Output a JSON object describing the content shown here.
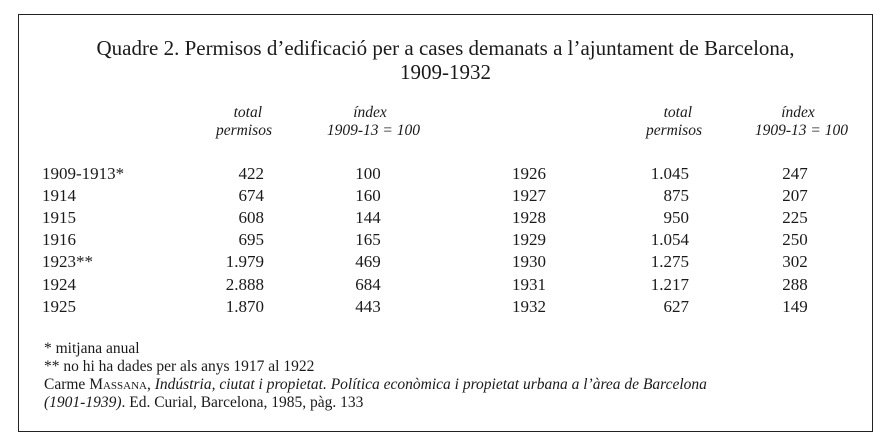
{
  "title_line1": "Quadre 2. Permisos d’edificació per a cases demanats a l’ajuntament de Barcelona,",
  "title_line2": "1909-1932",
  "headers": {
    "total_l1": "total",
    "total_l2": "permisos",
    "index_l1": "índex",
    "index_l2": "1909-13 = 100"
  },
  "left_rows": [
    {
      "year": "1909-1913*",
      "total": "422",
      "index": "100"
    },
    {
      "year": "1914",
      "total": "674",
      "index": "160"
    },
    {
      "year": "1915",
      "total": "608",
      "index": "144"
    },
    {
      "year": "1916",
      "total": "695",
      "index": "165"
    },
    {
      "year": "1923**",
      "total": "1.979",
      "index": "469"
    },
    {
      "year": "1924",
      "total": "2.888",
      "index": "684"
    },
    {
      "year": "1925",
      "total": "1.870",
      "index": "443"
    }
  ],
  "right_rows": [
    {
      "year": "1926",
      "total": "1.045",
      "index": "247"
    },
    {
      "year": "1927",
      "total": "875",
      "index": "207"
    },
    {
      "year": "1928",
      "total": "950",
      "index": "225"
    },
    {
      "year": "1929",
      "total": "1.054",
      "index": "250"
    },
    {
      "year": "1930",
      "total": "1.275",
      "index": "302"
    },
    {
      "year": "1931",
      "total": "1.217",
      "index": "288"
    },
    {
      "year": "1932",
      "total": "627",
      "index": "149"
    }
  ],
  "notes": {
    "note1": "* mitjana anual",
    "note2": "** no hi ha dades per als anys 1917 al 1922",
    "source_author_first": "Carme ",
    "source_author_last": "Massana",
    "source_sep": ", ",
    "source_title": "Indústria, ciutat i propietat. Política econòmica i propietat urbana a l’àrea de Barcelona",
    "source_title_cont": "(1901-1939)",
    "source_rest": ". Ed. Curial, Barcelona, 1985, pàg. 133"
  }
}
